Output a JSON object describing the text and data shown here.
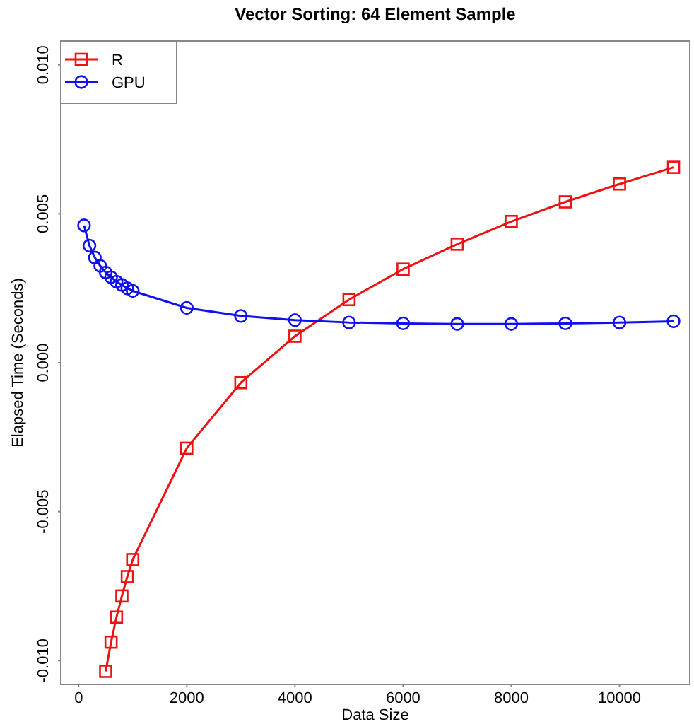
{
  "chart_data": {
    "type": "line",
    "title": "Vector Sorting: 64 Element Sample",
    "xlabel": "Data Size",
    "ylabel": "Elapsed Time (Seconds)",
    "x": [
      100,
      200,
      300,
      400,
      500,
      600,
      700,
      800,
      900,
      1000,
      2000,
      3000,
      4000,
      5000,
      6000,
      7000,
      8000,
      9000,
      10000,
      11000
    ],
    "series": [
      {
        "name": "R",
        "color": "#ee1111",
        "marker": "square",
        "values": [
          null,
          null,
          null,
          null,
          -0.01036,
          -0.00938,
          -0.00854,
          -0.00783,
          -0.00718,
          -0.00661,
          -0.00287,
          -0.00067,
          0.00089,
          0.00212,
          0.00314,
          0.00398,
          0.00474,
          0.0054,
          0.006,
          0.00656
        ]
      },
      {
        "name": "GPU",
        "color": "#1111ee",
        "marker": "circle",
        "values": [
          0.00461,
          0.00393,
          0.00353,
          0.00325,
          0.00303,
          0.00287,
          0.00272,
          0.00261,
          0.0025,
          0.00241,
          0.00184,
          0.00157,
          0.00143,
          0.00135,
          0.00132,
          0.0013,
          0.0013,
          0.00132,
          0.00135,
          0.00139
        ]
      }
    ],
    "xlim": [
      -330,
      11300
    ],
    "xticks": [
      0,
      2000,
      4000,
      6000,
      8000,
      10000
    ],
    "ylim": [
      -0.0108,
      0.0108
    ],
    "yticks": [
      {
        "value": -0.01,
        "label": "-0.010"
      },
      {
        "value": -0.005,
        "label": "-0.005"
      },
      {
        "value": 0,
        "label": "0.000"
      },
      {
        "value": 0.005,
        "label": "0.005"
      },
      {
        "value": 0.01,
        "label": "0.010"
      }
    ],
    "grid": false,
    "legend": "top left",
    "line_style": "solid"
  }
}
